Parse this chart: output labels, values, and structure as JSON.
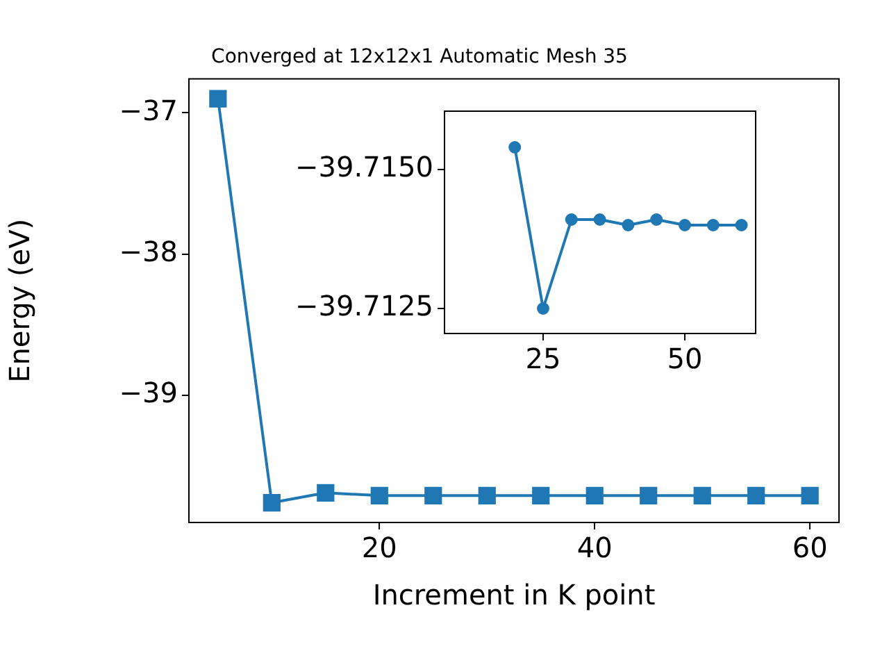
{
  "chart_data": [
    {
      "type": "line",
      "title": "Converged at 12x12x1 Automatic Mesh 35",
      "xlabel": "Increment in K point",
      "ylabel": "Energy (eV)",
      "x": [
        5,
        10,
        15,
        20,
        25,
        30,
        35,
        40,
        45,
        50,
        55,
        60
      ],
      "series": [
        {
          "color": "#1f77b4",
          "values": [
            -36.9,
            -39.76,
            -39.69,
            -39.71,
            -39.71,
            -39.71,
            -39.71,
            -39.71,
            -39.71,
            -39.71,
            -39.71,
            -39.71
          ]
        }
      ],
      "xlim": [
        2.3,
        62.7
      ],
      "xticks": [
        20,
        40,
        60
      ],
      "ylim": [
        -39.9,
        -36.76
      ],
      "yticks": [
        -39,
        -38,
        -37
      ],
      "marker": "square",
      "grid": false,
      "legend": false
    },
    {
      "type": "line",
      "x": [
        20,
        25,
        30,
        35,
        40,
        45,
        50,
        55,
        60
      ],
      "series": [
        {
          "color": "#1f77b4",
          "values": [
            -39.7154,
            -39.7125,
            -39.7141,
            -39.7141,
            -39.714,
            -39.7141,
            -39.714,
            -39.714,
            -39.714
          ]
        }
      ],
      "xlim": [
        7.6,
        62.5
      ],
      "xticks": [
        25,
        50
      ],
      "ylim": [
        -39.71205,
        -39.71605
      ],
      "yticks": [
        {
          "value": -39.715,
          "label": "−39.7150"
        },
        {
          "value": -39.7125,
          "label": "−39.7125"
        }
      ],
      "marker": "circle",
      "grid": false,
      "legend": false
    }
  ]
}
